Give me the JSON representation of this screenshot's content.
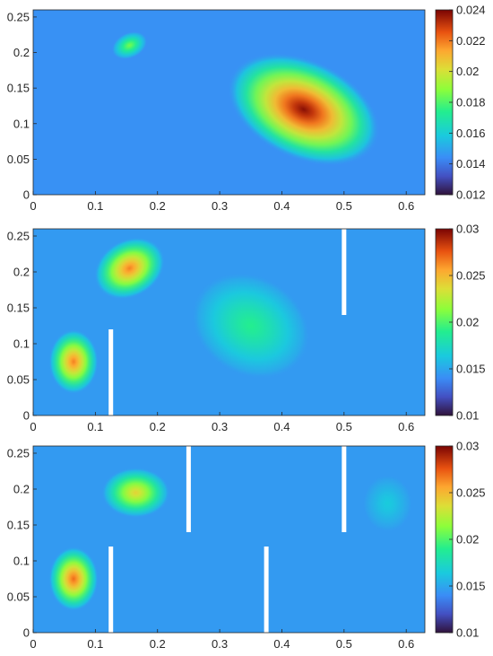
{
  "chart_data": [
    {
      "type": "heatmap",
      "xlim": [
        0,
        0.63
      ],
      "ylim": [
        0,
        0.26
      ],
      "x_ticks": [
        "0",
        "0.1",
        "0.2",
        "0.3",
        "0.4",
        "0.5",
        "0.6"
      ],
      "y_ticks": [
        "0",
        "0.05",
        "0.1",
        "0.15",
        "0.2",
        "0.25"
      ],
      "colorbar": {
        "min": 0.012,
        "max": 0.024,
        "ticks": [
          "0.012",
          "0.014",
          "0.016",
          "0.018",
          "0.02",
          "0.022",
          "0.024"
        ]
      },
      "background_value": 0.0145,
      "hotspots": [
        {
          "x": 0.155,
          "y": 0.21,
          "rx": 0.03,
          "ry": 0.018,
          "angle": -25,
          "value": 0.0185
        },
        {
          "x": 0.435,
          "y": 0.12,
          "rx": 0.13,
          "ry": 0.07,
          "angle": 25,
          "value": 0.0238
        }
      ],
      "baffles": []
    },
    {
      "type": "heatmap",
      "xlim": [
        0,
        0.63
      ],
      "ylim": [
        0,
        0.26
      ],
      "x_ticks": [
        "0",
        "0.1",
        "0.2",
        "0.3",
        "0.4",
        "0.5",
        "0.6"
      ],
      "y_ticks": [
        "0",
        "0.05",
        "0.1",
        "0.15",
        "0.2",
        "0.25"
      ],
      "colorbar": {
        "min": 0.01,
        "max": 0.03,
        "ticks": [
          "0.01",
          "0.015",
          "0.02",
          "0.025",
          "0.03"
        ]
      },
      "background_value": 0.0145,
      "hotspots": [
        {
          "x": 0.155,
          "y": 0.205,
          "rx": 0.06,
          "ry": 0.04,
          "angle": -30,
          "value": 0.0265
        },
        {
          "x": 0.065,
          "y": 0.075,
          "rx": 0.04,
          "ry": 0.045,
          "angle": 0,
          "value": 0.0265
        },
        {
          "x": 0.35,
          "y": 0.125,
          "rx": 0.1,
          "ry": 0.07,
          "angle": 30,
          "value": 0.019
        }
      ],
      "baffles": [
        {
          "x": 0.125,
          "y0": 0,
          "y1": 0.12
        },
        {
          "x": 0.5,
          "y0": 0.14,
          "y1": 0.26
        }
      ]
    },
    {
      "type": "heatmap",
      "xlim": [
        0,
        0.63
      ],
      "ylim": [
        0,
        0.26
      ],
      "x_ticks": [
        "0",
        "0.1",
        "0.2",
        "0.3",
        "0.4",
        "0.5",
        "0.6"
      ],
      "y_ticks": [
        "0",
        "0.05",
        "0.1",
        "0.15",
        "0.2",
        "0.25"
      ],
      "colorbar": {
        "min": 0.01,
        "max": 0.03,
        "ticks": [
          "0.01",
          "0.015",
          "0.02",
          "0.025",
          "0.03"
        ]
      },
      "background_value": 0.0145,
      "hotspots": [
        {
          "x": 0.165,
          "y": 0.195,
          "rx": 0.055,
          "ry": 0.035,
          "angle": 0,
          "value": 0.024
        },
        {
          "x": 0.065,
          "y": 0.075,
          "rx": 0.04,
          "ry": 0.045,
          "angle": 0,
          "value": 0.027
        },
        {
          "x": 0.57,
          "y": 0.18,
          "rx": 0.04,
          "ry": 0.04,
          "angle": 0,
          "value": 0.0165
        }
      ],
      "baffles": [
        {
          "x": 0.125,
          "y0": 0,
          "y1": 0.12
        },
        {
          "x": 0.25,
          "y0": 0.14,
          "y1": 0.26
        },
        {
          "x": 0.375,
          "y0": 0,
          "y1": 0.12
        },
        {
          "x": 0.5,
          "y0": 0.14,
          "y1": 0.26
        }
      ]
    }
  ]
}
